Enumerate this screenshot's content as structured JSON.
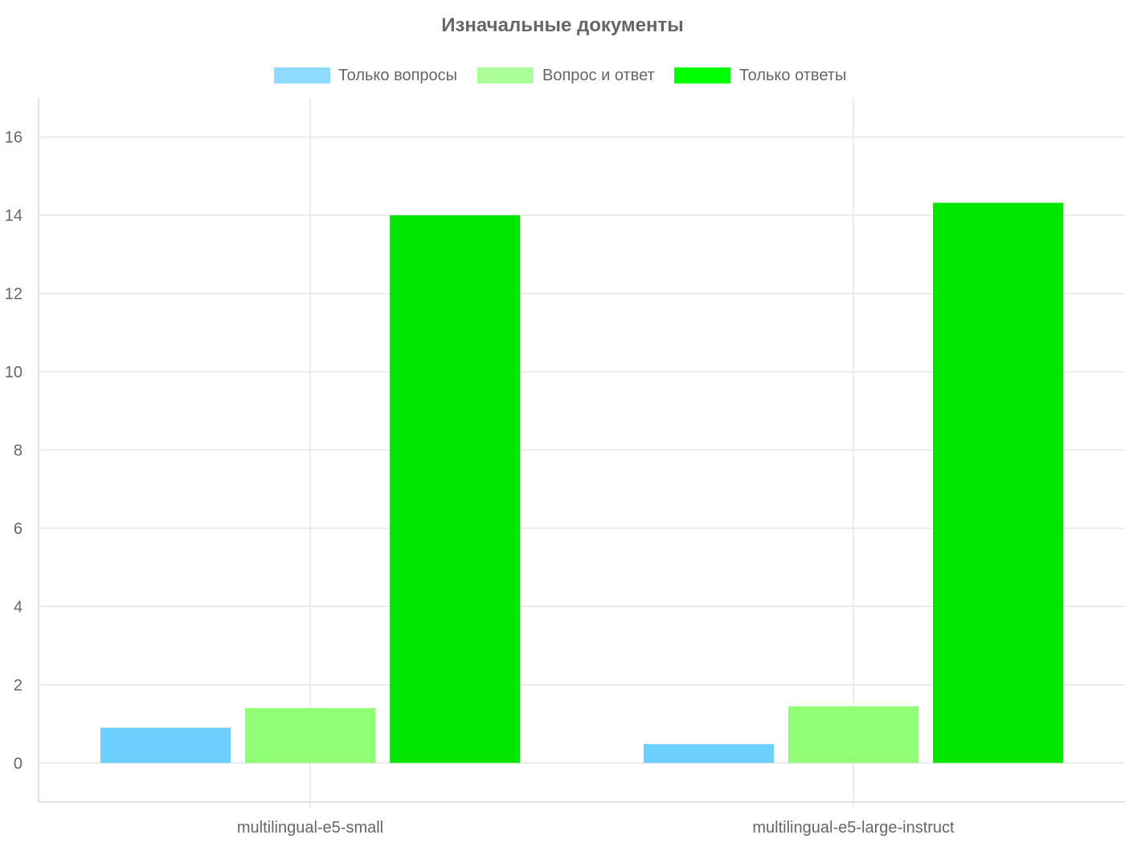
{
  "chart_data": {
    "type": "bar",
    "title": "Изначальные документы",
    "categories": [
      "multilingual-e5-small",
      "multilingual-e5-large-instruct"
    ],
    "series": [
      {
        "name": "Только вопросы",
        "values": [
          0.9,
          0.48
        ],
        "color": "#6dcfff",
        "legend_color": "#8fdbff"
      },
      {
        "name": "Вопрос и ответ",
        "values": [
          1.4,
          1.45
        ],
        "color": "#91ff77",
        "legend_color": "#adff9b"
      },
      {
        "name": "Только ответы",
        "values": [
          14.0,
          14.32
        ],
        "color": "#00e600",
        "legend_color": "#00ff00"
      }
    ],
    "ylim": [
      -1,
      17
    ],
    "yticks": [
      0,
      2,
      4,
      6,
      8,
      10,
      12,
      14,
      16
    ],
    "legend_position": "top",
    "grid": true
  }
}
